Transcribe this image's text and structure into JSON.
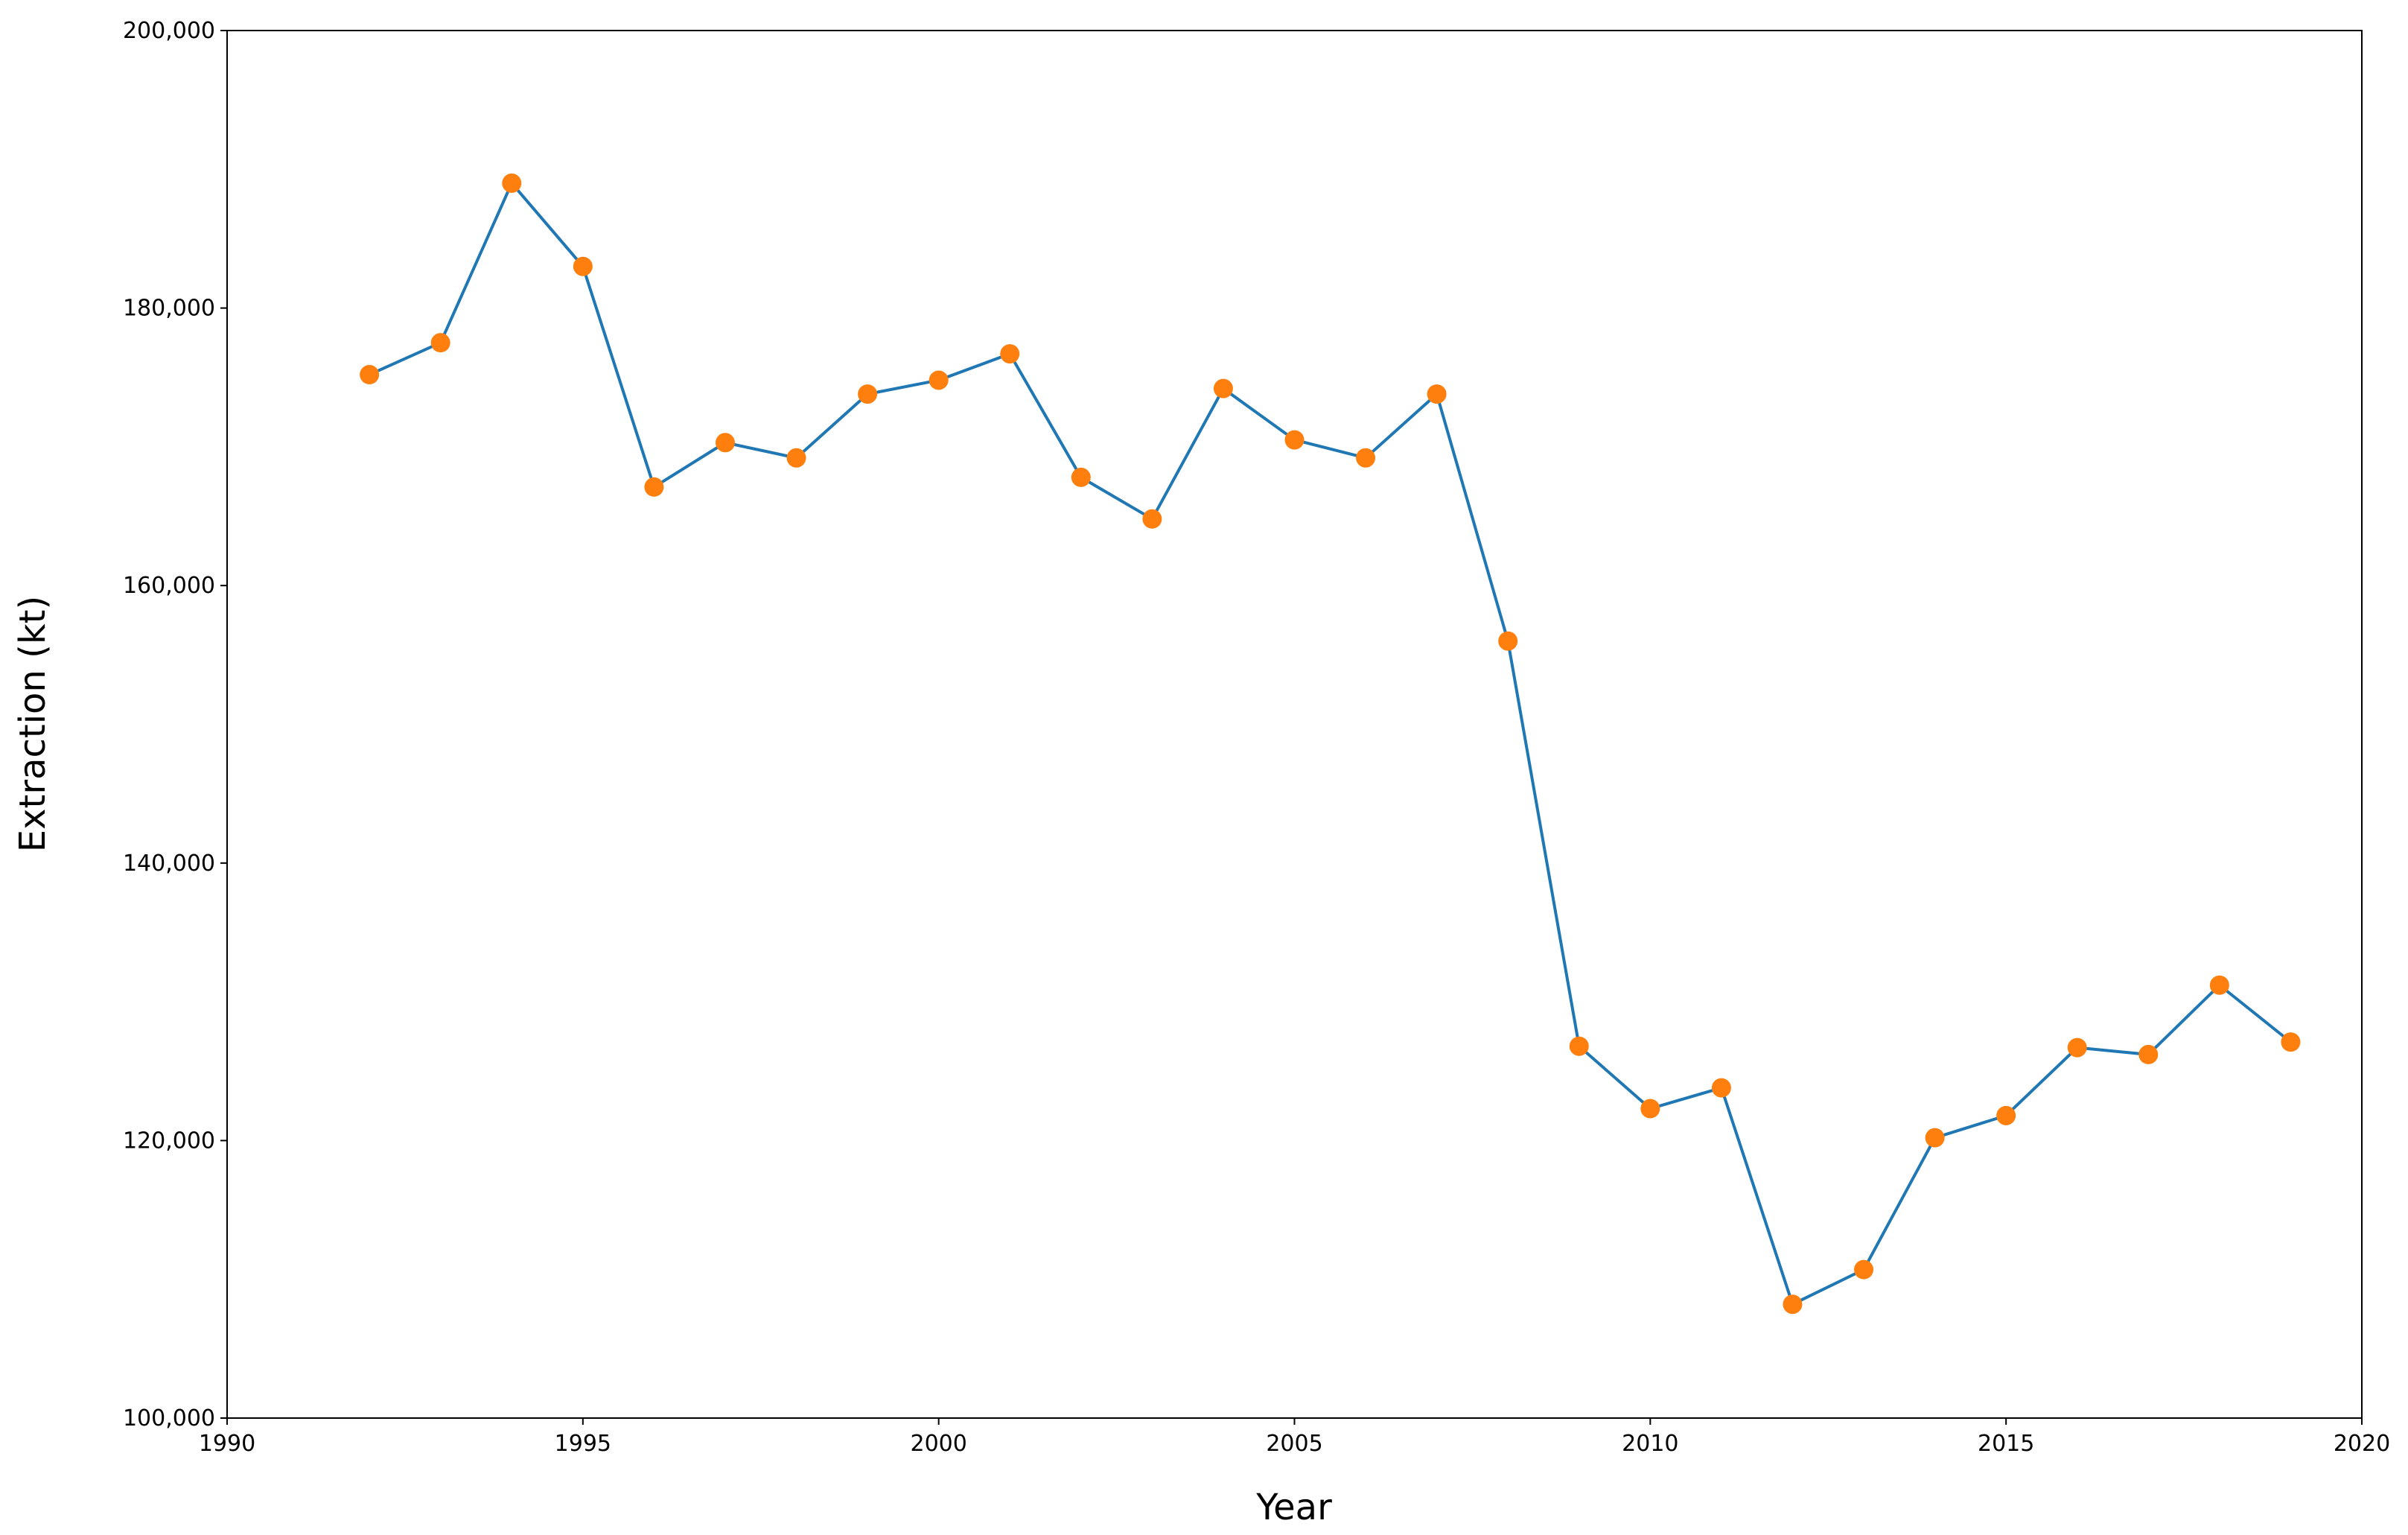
{
  "chart_data": {
    "type": "line",
    "x_label": "Year",
    "y_label": "Extraction (kt)",
    "x": [
      1992,
      1993,
      1994,
      1995,
      1996,
      1997,
      1998,
      1999,
      2000,
      2001,
      2002,
      2003,
      2004,
      2005,
      2006,
      2007,
      2008,
      2009,
      2010,
      2011,
      2012,
      2013,
      2014,
      2015,
      2016,
      2017,
      2018,
      2019
    ],
    "series": [
      {
        "color": "#1f77b4",
        "marker_color": "#ff7f0e",
        "values": [
          175200,
          177500,
          189000,
          183000,
          167100,
          170300,
          169200,
          173800,
          174800,
          176700,
          167800,
          164800,
          174200,
          170500,
          169200,
          173800,
          156000,
          126800,
          122300,
          123800,
          108200,
          110700,
          120200,
          121800,
          126700,
          126200,
          131200,
          127100
        ]
      }
    ],
    "xlim": [
      1990,
      2020
    ],
    "xticks": [
      1990,
      1995,
      2000,
      2005,
      2010,
      2015,
      2020
    ],
    "ylim": [
      100000,
      200000
    ],
    "yticks": [
      {
        "value": 100000,
        "label": "100,000"
      },
      {
        "value": 120000,
        "label": "120,000"
      },
      {
        "value": 140000,
        "label": "140,000"
      },
      {
        "value": 160000,
        "label": "160,000"
      },
      {
        "value": 180000,
        "label": "180,000"
      },
      {
        "value": 200000,
        "label": "200,000"
      }
    ],
    "grid": false
  }
}
